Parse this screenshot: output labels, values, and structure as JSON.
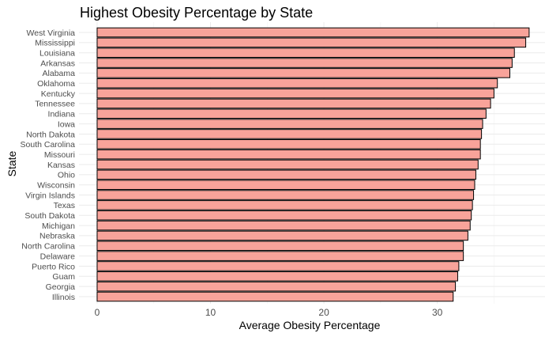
{
  "chart_data": {
    "type": "bar",
    "orientation": "horizontal",
    "title": "Highest Obesity Percentage by State",
    "xlabel": "Average Obesity Percentage",
    "ylabel": "State",
    "xlim": [
      -1.6,
      39.5
    ],
    "x_ticks": [
      0,
      10,
      20,
      30
    ],
    "grid": true,
    "bar_fill": "#f8a39a",
    "bar_outline": "#000000",
    "categories": [
      "West Virginia",
      "Mississippi",
      "Louisiana",
      "Arkansas",
      "Alabama",
      "Oklahoma",
      "Kentucky",
      "Tennessee",
      "Indiana",
      "Iowa",
      "North Dakota",
      "South Carolina",
      "Missouri",
      "Kansas",
      "Ohio",
      "Wisconsin",
      "Virgin Islands",
      "Texas",
      "South Dakota",
      "Michigan",
      "Nebraska",
      "North Carolina",
      "Delaware",
      "Puerto Rico",
      "Guam",
      "Georgia",
      "Illinois"
    ],
    "values": [
      38.1,
      37.8,
      36.8,
      36.6,
      36.4,
      35.3,
      35.0,
      34.7,
      34.3,
      34.0,
      33.9,
      33.8,
      33.8,
      33.6,
      33.4,
      33.3,
      33.2,
      33.1,
      33.0,
      32.9,
      32.7,
      32.3,
      32.3,
      31.9,
      31.8,
      31.6,
      31.4
    ]
  }
}
